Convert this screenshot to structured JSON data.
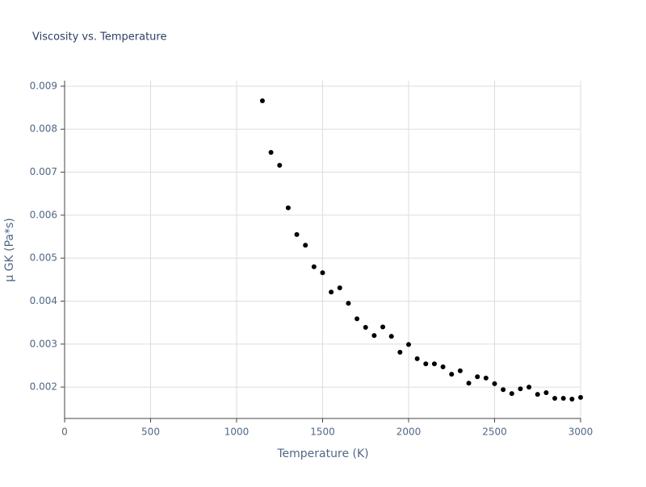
{
  "chart_data": {
    "type": "scatter",
    "title": "Viscosity vs. Temperature",
    "x_label": "Temperature (K)",
    "y_label": "μ GK (Pa*s)",
    "color": "#000000",
    "grid": true,
    "xlim": [
      0,
      3000
    ],
    "xticks": [
      0,
      500,
      1000,
      1500,
      2000,
      2500,
      3000
    ],
    "ylim": [
      0.00127,
      0.00913
    ],
    "yticks": [
      0.002,
      0.003,
      0.004,
      0.005,
      0.006,
      0.007,
      0.008,
      0.009
    ],
    "x": [
      1150,
      1200,
      1250,
      1300,
      1350,
      1400,
      1450,
      1500,
      1550,
      1600,
      1650,
      1700,
      1750,
      1800,
      1850,
      1900,
      1950,
      2000,
      2050,
      2100,
      2150,
      2200,
      2250,
      2300,
      2350,
      2400,
      2450,
      2500,
      2550,
      2600,
      2650,
      2700,
      2750,
      2800,
      2850,
      2900,
      2950,
      3000
    ],
    "values": [
      0.00866,
      0.00746,
      0.00716,
      0.00617,
      0.00555,
      0.0053,
      0.0048,
      0.00466,
      0.00421,
      0.00431,
      0.00395,
      0.00359,
      0.00339,
      0.0032,
      0.0034,
      0.00318,
      0.00281,
      0.00299,
      0.00266,
      0.00254,
      0.00254,
      0.00247,
      0.0023,
      0.00238,
      0.00209,
      0.00224,
      0.00221,
      0.00208,
      0.00194,
      0.00185,
      0.00196,
      0.002,
      0.00183,
      0.00187,
      0.00174,
      0.00174,
      0.00172,
      0.00176
    ]
  }
}
